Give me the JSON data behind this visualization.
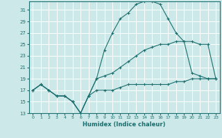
{
  "xlabel": "Humidex (Indice chaleur)",
  "bg_color": "#cce8e8",
  "grid_color": "#ffffff",
  "line_color": "#1a6e6e",
  "xlim": [
    -0.5,
    23.5
  ],
  "ylim": [
    13,
    32.5
  ],
  "xticks": [
    0,
    1,
    2,
    3,
    4,
    5,
    6,
    7,
    8,
    9,
    10,
    11,
    12,
    13,
    14,
    15,
    16,
    17,
    18,
    19,
    20,
    21,
    22,
    23
  ],
  "yticks": [
    13,
    15,
    17,
    19,
    21,
    23,
    25,
    27,
    29,
    31
  ],
  "series": [
    {
      "x": [
        0,
        1,
        2,
        3,
        4,
        5,
        6,
        7,
        8,
        9,
        10,
        11,
        12,
        13,
        14,
        15,
        16,
        17,
        18,
        19,
        20,
        21,
        22,
        23
      ],
      "y": [
        17,
        18,
        17,
        16,
        16,
        15,
        13,
        16,
        17,
        17,
        17,
        17.5,
        18,
        18,
        18,
        18,
        18,
        18,
        18.5,
        18.5,
        19,
        19,
        19,
        19
      ]
    },
    {
      "x": [
        0,
        1,
        2,
        3,
        4,
        5,
        6,
        7,
        8,
        9,
        10,
        11,
        12,
        13,
        14,
        15,
        16,
        17,
        18,
        19,
        20,
        21,
        22,
        23
      ],
      "y": [
        17,
        18,
        17,
        16,
        16,
        15,
        13,
        16,
        19,
        19.5,
        20,
        21,
        22,
        23,
        24,
        24.5,
        25,
        25,
        25.5,
        25.5,
        25.5,
        25,
        25,
        19
      ]
    },
    {
      "x": [
        0,
        1,
        2,
        3,
        4,
        5,
        6,
        7,
        8,
        9,
        10,
        11,
        12,
        13,
        14,
        15,
        16,
        17,
        18,
        19,
        20,
        21,
        22,
        23
      ],
      "y": [
        17,
        18,
        17,
        16,
        16,
        15,
        13,
        16,
        19,
        24,
        27,
        29.5,
        30.5,
        32,
        32.5,
        32.5,
        32,
        29.5,
        27,
        25.5,
        20,
        19.5,
        19,
        19
      ]
    }
  ]
}
